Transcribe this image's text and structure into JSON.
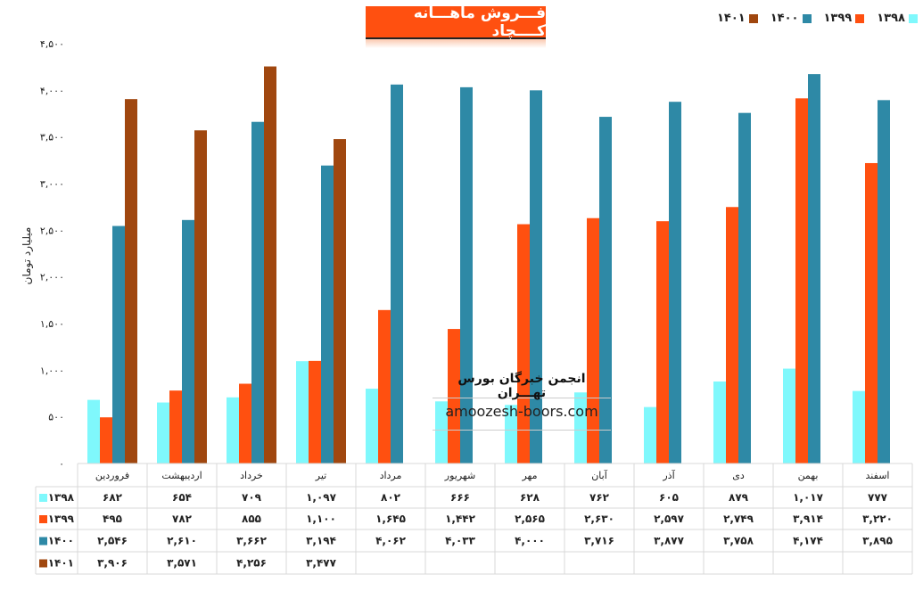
{
  "chart_data": {
    "type": "bar",
    "title": "فـــروش ماهـــانه کــــچاد",
    "ylabel": "میلیارد تومان",
    "ylim": [
      0,
      4500
    ],
    "yticks": [
      "۰",
      "۵۰۰",
      "۱,۰۰۰",
      "۱,۵۰۰",
      "۲,۰۰۰",
      "۲,۵۰۰",
      "۳,۰۰۰",
      "۳,۵۰۰",
      "۴,۰۰۰",
      "۴,۵۰۰"
    ],
    "yticks_values": [
      0,
      500,
      1000,
      1500,
      2000,
      2500,
      3000,
      3500,
      4000,
      4500
    ],
    "categories": [
      "فروردین",
      "اردیبهشت",
      "خرداد",
      "تیر",
      "مرداد",
      "شهریور",
      "مهر",
      "آبان",
      "آذر",
      "دی",
      "بهمن",
      "اسفند"
    ],
    "legend": "top-right",
    "grid": false,
    "series": [
      {
        "name": "۱۳۹۸",
        "color": "#7FF8FC",
        "values": [
          682,
          654,
          709,
          1097,
          802,
          666,
          628,
          762,
          605,
          879,
          1017,
          777
        ]
      },
      {
        "name": "۱۳۹۹",
        "color": "#FF5010",
        "values": [
          495,
          782,
          855,
          1100,
          1645,
          1442,
          2565,
          2630,
          2597,
          2749,
          3914,
          3220
        ]
      },
      {
        "name": "۱۴۰۰",
        "color": "#2E89A6",
        "values": [
          2546,
          2610,
          3662,
          3194,
          4062,
          4033,
          4000,
          3716,
          3877,
          3758,
          4174,
          3895
        ]
      },
      {
        "name": "۱۴۰۱",
        "color": "#A0470F",
        "values": [
          3906,
          3571,
          4256,
          3477,
          null,
          null,
          null,
          null,
          null,
          null,
          null,
          null
        ]
      }
    ]
  },
  "watermark": {
    "line1": "انجمن خبرگان بورس تهـــران",
    "line2": "amoozesh-boors.com"
  }
}
